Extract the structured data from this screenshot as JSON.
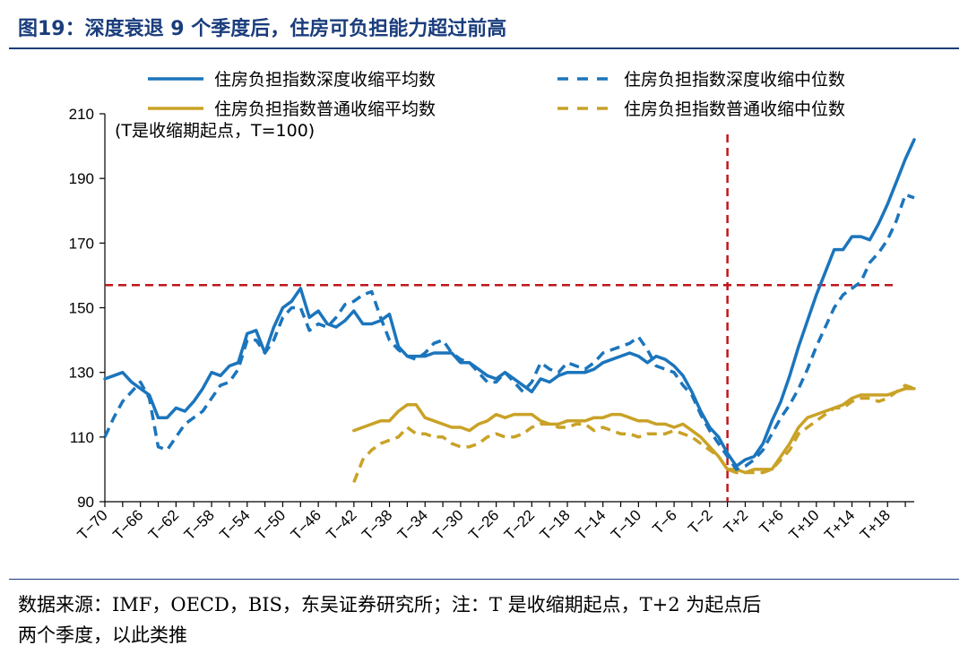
{
  "figure": {
    "title": "图19：深度衰退 9 个季度后，住房可负担能力超过前高",
    "source_line1": "数据来源：IMF，OECD，BIS，东吴证券研究所；注：T 是收缩期起点，T+2 为起点后",
    "source_line2": "两个季度，以此类推"
  },
  "chart_data": {
    "type": "line",
    "title": "图19：深度衰退 9 个季度后，住房可负担能力超过前高",
    "annotation": "(T是收缩期起点，T=100)",
    "xlabel": "",
    "ylabel": "",
    "ylim": [
      90,
      210
    ],
    "yticks": [
      90,
      110,
      130,
      150,
      170,
      190,
      210
    ],
    "x_start": -70,
    "x_end": 21,
    "x_tick_labels": [
      "T−70",
      "T−66",
      "T−62",
      "T−58",
      "T−54",
      "T−50",
      "T−46",
      "T−42",
      "T−38",
      "T−34",
      "T−30",
      "T−26",
      "T−22",
      "T−18",
      "T−14",
      "T−10",
      "T−6",
      "T−2",
      "T+2",
      "T+6",
      "T+10",
      "T+14",
      "T+18"
    ],
    "x_tick_values": [
      -70,
      -66,
      -62,
      -58,
      -54,
      -50,
      -46,
      -42,
      -38,
      -34,
      -30,
      -26,
      -22,
      -18,
      -14,
      -10,
      -6,
      -2,
      2,
      6,
      10,
      14,
      18
    ],
    "reference_lines": {
      "vertical_x": 0,
      "horizontal_y": 157,
      "color": "#c0161b"
    },
    "series": [
      {
        "name": "住房负担指数深度收缩平均数",
        "style": "solid",
        "color": "#1b75bc",
        "x": [
          -70,
          -69,
          -68,
          -67,
          -66,
          -65,
          -64,
          -63,
          -62,
          -61,
          -60,
          -59,
          -58,
          -57,
          -56,
          -55,
          -54,
          -53,
          -52,
          -51,
          -50,
          -49,
          -48,
          -47,
          -46,
          -45,
          -44,
          -43,
          -42,
          -41,
          -40,
          -39,
          -38,
          -37,
          -36,
          -35,
          -34,
          -33,
          -32,
          -31,
          -30,
          -29,
          -28,
          -27,
          -26,
          -25,
          -24,
          -23,
          -22,
          -21,
          -20,
          -19,
          -18,
          -17,
          -16,
          -15,
          -14,
          -13,
          -12,
          -11,
          -10,
          -9,
          -8,
          -7,
          -6,
          -5,
          -4,
          -3,
          -2,
          -1,
          0,
          1,
          2,
          3,
          4,
          5,
          6,
          7,
          8,
          9,
          10,
          11,
          12,
          13,
          14,
          15,
          16,
          17,
          18,
          19,
          20,
          21
        ],
        "values": [
          128,
          129,
          130,
          127,
          125,
          123,
          116,
          116,
          119,
          118,
          121,
          125,
          130,
          129,
          132,
          133,
          142,
          143,
          136,
          144,
          150,
          152,
          156,
          147,
          149,
          145,
          144,
          146,
          149,
          145,
          145,
          146,
          148,
          138,
          135,
          135,
          135,
          136,
          136,
          136,
          133,
          133,
          131,
          129,
          128,
          130,
          128,
          126,
          124,
          128,
          127,
          129,
          130,
          130,
          130,
          131,
          133,
          134,
          135,
          136,
          135,
          133,
          135,
          134,
          132,
          129,
          124,
          118,
          113,
          110,
          105,
          101,
          103,
          104,
          108,
          115,
          121,
          129,
          138,
          146,
          154,
          161,
          168,
          168,
          172,
          172,
          171,
          176,
          182,
          189,
          196,
          202
        ]
      },
      {
        "name": "住房负担指数深度收缩中位数",
        "style": "dashed",
        "color": "#1b75bc",
        "x": [
          -70,
          -69,
          -68,
          -67,
          -66,
          -65,
          -64,
          -63,
          -62,
          -61,
          -60,
          -59,
          -58,
          -57,
          -56,
          -55,
          -54,
          -53,
          -52,
          -51,
          -50,
          -49,
          -48,
          -47,
          -46,
          -45,
          -44,
          -43,
          -42,
          -41,
          -40,
          -39,
          -38,
          -37,
          -36,
          -35,
          -34,
          -33,
          -32,
          -31,
          -30,
          -29,
          -28,
          -27,
          -26,
          -25,
          -24,
          -23,
          -22,
          -21,
          -20,
          -19,
          -18,
          -17,
          -16,
          -15,
          -14,
          -13,
          -12,
          -11,
          -10,
          -9,
          -8,
          -7,
          -6,
          -5,
          -4,
          -3,
          -2,
          -1,
          0,
          1,
          2,
          3,
          4,
          5,
          6,
          7,
          8,
          9,
          10,
          11,
          12,
          13,
          14,
          15,
          16,
          17,
          18,
          19,
          20,
          21
        ],
        "values": [
          110,
          116,
          121,
          124,
          127,
          122,
          107,
          106,
          110,
          114,
          116,
          118,
          122,
          126,
          127,
          131,
          140,
          140,
          136,
          140,
          147,
          150,
          150,
          143,
          145,
          144,
          147,
          151,
          152,
          154,
          155,
          147,
          140,
          137,
          135,
          134,
          136,
          139,
          140,
          136,
          134,
          133,
          130,
          127,
          127,
          130,
          127,
          124,
          127,
          133,
          131,
          130,
          133,
          132,
          131,
          133,
          136,
          137,
          138,
          139,
          141,
          137,
          132,
          131,
          130,
          126,
          123,
          117,
          112,
          108,
          104,
          100,
          101,
          103,
          106,
          111,
          116,
          120,
          125,
          131,
          138,
          144,
          150,
          154,
          156,
          158,
          164,
          167,
          171,
          177,
          185,
          184
        ]
      },
      {
        "name": "住房负担指数普通收缩平均数",
        "style": "solid",
        "color": "#c9a227",
        "x": [
          -42,
          -41,
          -40,
          -39,
          -38,
          -37,
          -36,
          -35,
          -34,
          -33,
          -32,
          -31,
          -30,
          -29,
          -28,
          -27,
          -26,
          -25,
          -24,
          -23,
          -22,
          -21,
          -20,
          -19,
          -18,
          -17,
          -16,
          -15,
          -14,
          -13,
          -12,
          -11,
          -10,
          -9,
          -8,
          -7,
          -6,
          -5,
          -4,
          -3,
          -2,
          -1,
          0,
          1,
          2,
          3,
          4,
          5,
          6,
          7,
          8,
          9,
          10,
          11,
          12,
          13,
          14,
          15,
          16,
          17,
          18,
          19,
          20,
          21
        ],
        "values": [
          112,
          113,
          114,
          115,
          115,
          118,
          120,
          120,
          116,
          115,
          114,
          113,
          113,
          112,
          114,
          115,
          117,
          116,
          117,
          117,
          117,
          115,
          114,
          114,
          115,
          115,
          115,
          116,
          116,
          117,
          117,
          116,
          115,
          115,
          114,
          114,
          113,
          114,
          112,
          110,
          107,
          104,
          100,
          100,
          99,
          100,
          100,
          100,
          104,
          108,
          113,
          116,
          117,
          118,
          119,
          120,
          122,
          123,
          123,
          123,
          123,
          124,
          125,
          125
        ]
      },
      {
        "name": "住房负担指数普通收缩中位数",
        "style": "dashed",
        "color": "#c9a227",
        "x": [
          -42,
          -41,
          -40,
          -39,
          -38,
          -37,
          -36,
          -35,
          -34,
          -33,
          -32,
          -31,
          -30,
          -29,
          -28,
          -27,
          -26,
          -25,
          -24,
          -23,
          -22,
          -21,
          -20,
          -19,
          -18,
          -17,
          -16,
          -15,
          -14,
          -13,
          -12,
          -11,
          -10,
          -9,
          -8,
          -7,
          -6,
          -5,
          -4,
          -3,
          -2,
          -1,
          0,
          1,
          2,
          3,
          4,
          5,
          6,
          7,
          8,
          9,
          10,
          11,
          12,
          13,
          14,
          15,
          16,
          17,
          18,
          19,
          20,
          21
        ],
        "values": [
          96,
          103,
          106,
          108,
          109,
          110,
          113,
          111,
          111,
          110,
          110,
          108,
          107,
          107,
          108,
          110,
          111,
          110,
          110,
          111,
          113,
          114,
          114,
          113,
          113,
          114,
          114,
          112,
          113,
          112,
          111,
          111,
          110,
          111,
          111,
          111,
          112,
          111,
          110,
          108,
          106,
          104,
          100,
          99,
          99,
          99,
          99,
          100,
          103,
          106,
          111,
          113,
          115,
          117,
          119,
          119,
          121,
          122,
          122,
          121,
          122,
          124,
          126,
          125
        ]
      }
    ]
  }
}
